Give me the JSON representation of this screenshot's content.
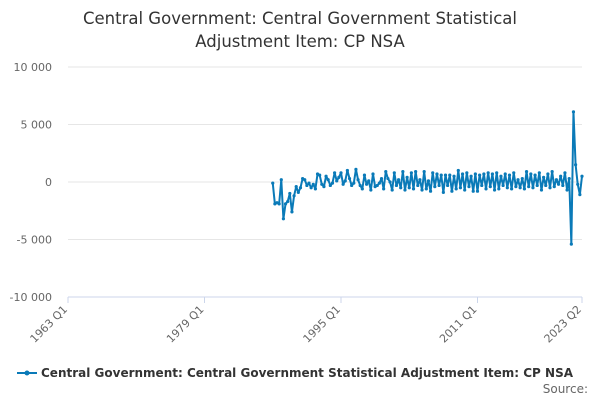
{
  "chart_data": {
    "type": "line",
    "title_line1": "Central Government: Central Government Statistical",
    "title_line2": "Adjustment Item: CP NSA",
    "xlabel": "",
    "ylabel": "",
    "ylim": [
      -10000,
      10000
    ],
    "y_ticks": [
      10000,
      5000,
      0,
      -5000,
      -10000
    ],
    "y_tick_labels": [
      "10 000",
      "5 000",
      "0",
      "-5 000",
      "-10 000"
    ],
    "x_range": [
      1963.0,
      2023.25
    ],
    "x_ticks": [
      1963.0,
      1979.0,
      1995.0,
      2011.0,
      2023.25
    ],
    "x_tick_labels": [
      "1963 Q1",
      "1979 Q1",
      "1995 Q1",
      "2011 Q1",
      "2023 Q2"
    ],
    "grid": true,
    "legend_position": "bottom",
    "color": "#0a7ab8",
    "series": [
      {
        "name": "Central Government: Central Government Statistical Adjustment Item: CP NSA",
        "x": [
          1987.0,
          1987.25,
          1987.5,
          1987.75,
          1988.0,
          1988.25,
          1988.5,
          1988.75,
          1989.0,
          1989.25,
          1989.5,
          1989.75,
          1990.0,
          1990.25,
          1990.5,
          1990.75,
          1991.0,
          1991.25,
          1991.5,
          1991.75,
          1992.0,
          1992.25,
          1992.5,
          1992.75,
          1993.0,
          1993.25,
          1993.5,
          1993.75,
          1994.0,
          1994.25,
          1994.5,
          1994.75,
          1995.0,
          1995.25,
          1995.5,
          1995.75,
          1996.0,
          1996.25,
          1996.5,
          1996.75,
          1997.0,
          1997.25,
          1997.5,
          1997.75,
          1998.0,
          1998.25,
          1998.5,
          1998.75,
          1999.0,
          1999.25,
          1999.5,
          1999.75,
          2000.0,
          2000.25,
          2000.5,
          2000.75,
          2001.0,
          2001.25,
          2001.5,
          2001.75,
          2002.0,
          2002.25,
          2002.5,
          2002.75,
          2003.0,
          2003.25,
          2003.5,
          2003.75,
          2004.0,
          2004.25,
          2004.5,
          2004.75,
          2005.0,
          2005.25,
          2005.5,
          2005.75,
          2006.0,
          2006.25,
          2006.5,
          2006.75,
          2007.0,
          2007.25,
          2007.5,
          2007.75,
          2008.0,
          2008.25,
          2008.5,
          2008.75,
          2009.0,
          2009.25,
          2009.5,
          2009.75,
          2010.0,
          2010.25,
          2010.5,
          2010.75,
          2011.0,
          2011.25,
          2011.5,
          2011.75,
          2012.0,
          2012.25,
          2012.5,
          2012.75,
          2013.0,
          2013.25,
          2013.5,
          2013.75,
          2014.0,
          2014.25,
          2014.5,
          2014.75,
          2015.0,
          2015.25,
          2015.5,
          2015.75,
          2016.0,
          2016.25,
          2016.5,
          2016.75,
          2017.0,
          2017.25,
          2017.5,
          2017.75,
          2018.0,
          2018.25,
          2018.5,
          2018.75,
          2019.0,
          2019.25,
          2019.5,
          2019.75,
          2020.0,
          2020.25,
          2020.5,
          2020.75,
          2021.0,
          2021.25,
          2021.5,
          2021.75,
          2022.0,
          2022.25,
          2022.5,
          2022.75,
          2023.0,
          2023.25
        ],
        "values": [
          -100,
          -1900,
          -1800,
          -1900,
          200,
          -3200,
          -1900,
          -1700,
          -1000,
          -2600,
          -1200,
          -400,
          -900,
          -500,
          300,
          200,
          -300,
          -100,
          -500,
          -200,
          -600,
          700,
          600,
          -200,
          -400,
          500,
          200,
          -300,
          -100,
          800,
          100,
          400,
          800,
          -200,
          100,
          1000,
          300,
          -300,
          -100,
          1100,
          200,
          -300,
          -600,
          600,
          -200,
          100,
          -700,
          700,
          -400,
          -300,
          -100,
          300,
          -600,
          900,
          300,
          0,
          -700,
          800,
          -300,
          200,
          -500,
          900,
          -700,
          400,
          -500,
          800,
          -600,
          900,
          -300,
          200,
          -700,
          900,
          -600,
          100,
          -800,
          800,
          -400,
          700,
          -300,
          600,
          -900,
          600,
          -300,
          600,
          -800,
          500,
          -600,
          1000,
          -500,
          700,
          -700,
          800,
          -400,
          500,
          -800,
          700,
          -800,
          600,
          -300,
          700,
          -600,
          800,
          -400,
          700,
          -700,
          800,
          -600,
          500,
          -300,
          700,
          -500,
          600,
          -600,
          800,
          -400,
          200,
          -500,
          300,
          -600,
          900,
          -400,
          700,
          -500,
          600,
          -300,
          800,
          -700,
          400,
          -300,
          700,
          -500,
          900,
          -400,
          200,
          -200,
          500,
          -300,
          800,
          -700,
          300,
          -5400,
          6100,
          1500,
          -200,
          -1100,
          500
        ]
      }
    ],
    "legend_label": "Central Government: Central Government Statistical Adjustment Item: CP NSA",
    "source_label": "Source:"
  }
}
